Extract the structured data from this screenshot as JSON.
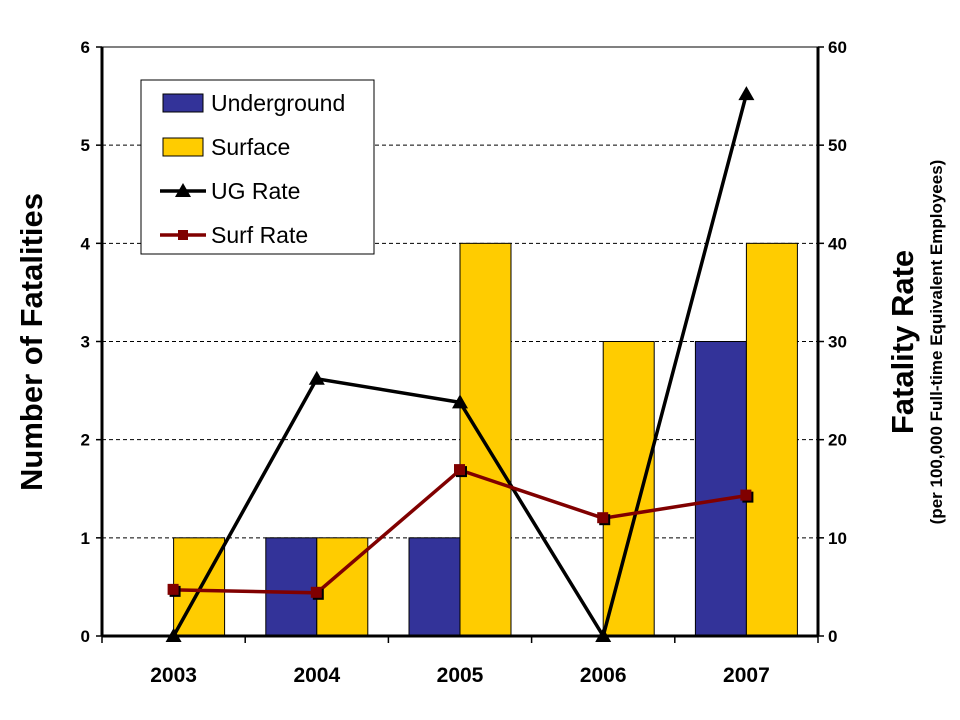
{
  "chart_data": {
    "type": "bar",
    "title": "",
    "categories": [
      "2003",
      "2004",
      "2005",
      "2006",
      "2007"
    ],
    "series": [
      {
        "name": "Underground",
        "type": "bar",
        "axis": "left",
        "color": "#333399",
        "values": [
          0,
          1,
          1,
          0,
          3
        ]
      },
      {
        "name": "Surface",
        "type": "bar",
        "axis": "left",
        "color": "#FFCC00",
        "values": [
          1,
          1,
          4,
          3,
          4
        ]
      },
      {
        "name": "UG Rate",
        "type": "line",
        "axis": "right",
        "color": "#000000",
        "marker": "triangle",
        "values": [
          0,
          26.2,
          23.8,
          0,
          55.2
        ]
      },
      {
        "name": "Surf Rate",
        "type": "line",
        "axis": "right",
        "color": "#800000",
        "marker": "square",
        "values": [
          4.7,
          4.4,
          16.9,
          12.0,
          14.3
        ]
      }
    ],
    "ylabel": "Number of Fatalities",
    "y2label": "Fatality Rate",
    "y2sublabel": "(per 100,000 Full-time Equivalent Employees)",
    "ylim": [
      0,
      6
    ],
    "y2lim": [
      0,
      60
    ],
    "yticks": [
      "0",
      "1",
      "2",
      "3",
      "4",
      "5",
      "6"
    ],
    "y2ticks": [
      "0",
      "10",
      "20",
      "30",
      "40",
      "50",
      "60"
    ],
    "grid": "horizontal-dashed",
    "legend_position": "top-left"
  }
}
